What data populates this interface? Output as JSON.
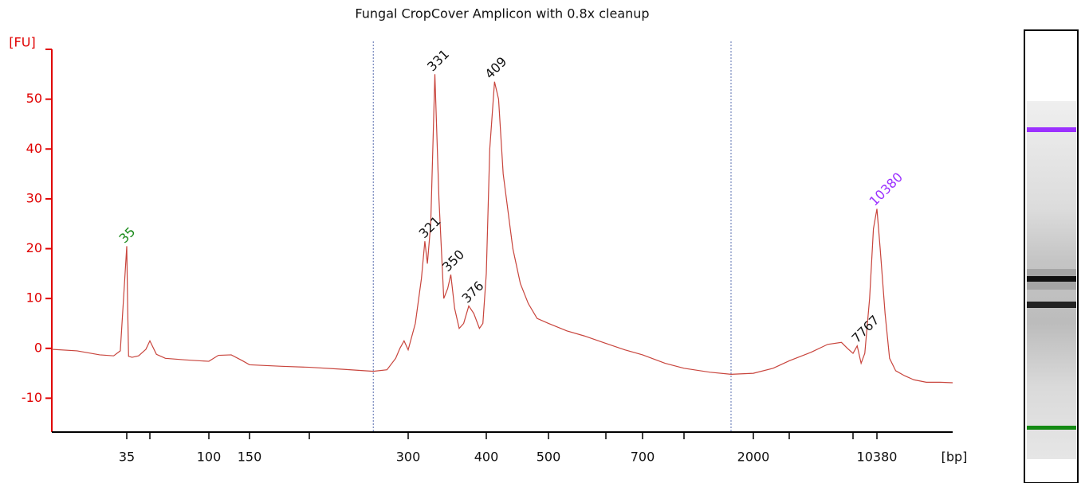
{
  "chart_data": {
    "type": "line",
    "title": "Fungal CropCover Amplicon with 0.8x cleanup",
    "ylabel": "[FU]",
    "xlabel": "[bp]",
    "xscale": "log",
    "xlim": [
      25,
      40000
    ],
    "ylim": [
      -16.8,
      60
    ],
    "yticks": [
      -10,
      0,
      10,
      20,
      30,
      40,
      50
    ],
    "xticks": [
      35,
      {
        "value": 50,
        "label": null
      },
      100,
      150,
      {
        "value": 200,
        "label": null
      },
      300,
      400,
      500,
      {
        "value": 600,
        "label": null
      },
      700,
      {
        "value": 1000,
        "label": null
      },
      2000,
      {
        "value": 3000,
        "label": null
      },
      {
        "value": 7000,
        "label": null
      },
      10380
    ],
    "axis_color": "#e00000",
    "region_markers": [
      260,
      1600
    ],
    "region_marker_color": "#5a6fb0",
    "series": [
      {
        "color": "#c8443c",
        "x": [
          25,
          28,
          31,
          33,
          34,
          34.5,
          35,
          35.5,
          36,
          38,
          42,
          47,
          50,
          54,
          60,
          75,
          90,
          100,
          110,
          125,
          140,
          150,
          175,
          200,
          230,
          260,
          275,
          285,
          290,
          295,
          300,
          308,
          315,
          319,
          322,
          326,
          331,
          336,
          342,
          347,
          351,
          356,
          362,
          368,
          375,
          382,
          390,
          395,
          400,
          405,
          412,
          418,
          425,
          440,
          452,
          465,
          480,
          500,
          530,
          560,
          600,
          650,
          700,
          850,
          1000,
          1300,
          1600,
          2000,
          2500,
          3000,
          4000,
          5000,
          6000,
          6500,
          7000,
          7500,
          8000,
          8500,
          9200,
          9800,
          10380,
          11000,
          12000,
          13000,
          14500,
          17000,
          20000,
          25000,
          32000,
          40000
        ],
        "values": [
          -0.2,
          -0.5,
          -1.3,
          -1.5,
          -0.5,
          10,
          20.5,
          8,
          -1.6,
          -1.8,
          -1.5,
          -0.2,
          1.5,
          -1.2,
          -2.0,
          -2.3,
          -2.5,
          -2.6,
          -1.4,
          -1.3,
          -2.5,
          -3.3,
          -3.6,
          -3.8,
          -4.2,
          -4.6,
          -4.3,
          -2,
          0,
          1.5,
          -0.3,
          5,
          14,
          21.5,
          17,
          25,
          55,
          30,
          10,
          12,
          14.8,
          8,
          4,
          5,
          8.5,
          7,
          4,
          5,
          15,
          40,
          53.5,
          50,
          35,
          20,
          13,
          9,
          6,
          5,
          3.5,
          2.5,
          1.0,
          -0.3,
          -1.3,
          -3,
          -4,
          -4.8,
          -5.2,
          -5,
          -4,
          -2.5,
          -0.8,
          0.8,
          1.2,
          0,
          -1,
          0.5,
          -3,
          -1,
          10,
          24,
          28,
          20,
          7,
          -2,
          -4.5,
          -5.5,
          -6.3,
          -6.8,
          -6.8,
          -6.9
        ]
      }
    ],
    "peaks": {
      "x": [
        35,
        321,
        331,
        350,
        376,
        409,
        7767,
        10380
      ],
      "y": [
        20.5,
        21.5,
        55,
        14.8,
        8.5,
        53.5,
        0.5,
        28
      ],
      "colors": [
        "#1a8a1a",
        "#111111",
        "#111111",
        "#111111",
        "#111111",
        "#111111",
        "#111111",
        "#9b30ff"
      ]
    }
  }
}
